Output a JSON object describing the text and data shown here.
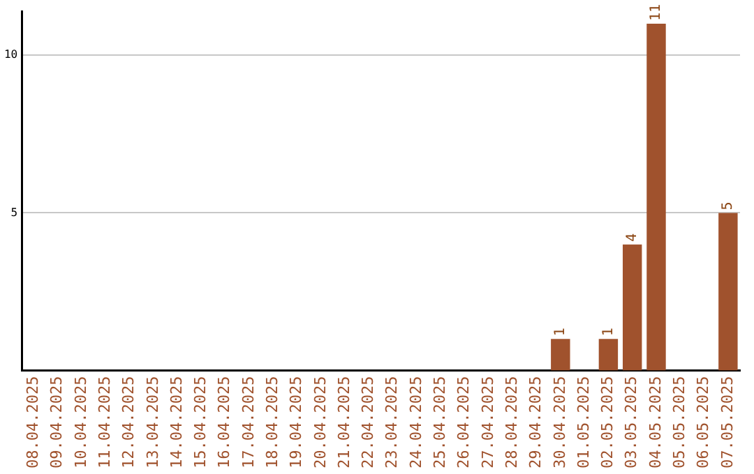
{
  "chart_data": {
    "type": "bar",
    "categories": [
      "08.04.2025",
      "09.04.2025",
      "10.04.2025",
      "11.04.2025",
      "12.04.2025",
      "13.04.2025",
      "14.04.2025",
      "15.04.2025",
      "16.04.2025",
      "17.04.2025",
      "18.04.2025",
      "19.04.2025",
      "20.04.2025",
      "21.04.2025",
      "22.04.2025",
      "23.04.2025",
      "24.04.2025",
      "25.04.2025",
      "26.04.2025",
      "27.04.2025",
      "28.04.2025",
      "29.04.2025",
      "30.04.2025",
      "01.05.2025",
      "02.05.2025",
      "03.05.2025",
      "04.05.2025",
      "05.05.2025",
      "06.05.2025",
      "07.05.2025"
    ],
    "values": [
      0,
      0,
      0,
      0,
      0,
      0,
      0,
      0,
      0,
      0,
      0,
      0,
      0,
      0,
      0,
      0,
      0,
      0,
      0,
      0,
      0,
      0,
      1,
      0,
      1,
      4,
      11,
      0,
      0,
      5
    ],
    "value_labels": [
      null,
      null,
      null,
      null,
      null,
      null,
      null,
      null,
      null,
      null,
      null,
      null,
      null,
      null,
      null,
      null,
      null,
      null,
      null,
      null,
      null,
      null,
      "1",
      null,
      "1",
      "4",
      "11",
      null,
      null,
      "5"
    ],
    "color": "#a0522d",
    "ylim": [
      0,
      11.4
    ],
    "yticks": [
      5,
      10
    ],
    "grid": "y",
    "legend": false
  }
}
